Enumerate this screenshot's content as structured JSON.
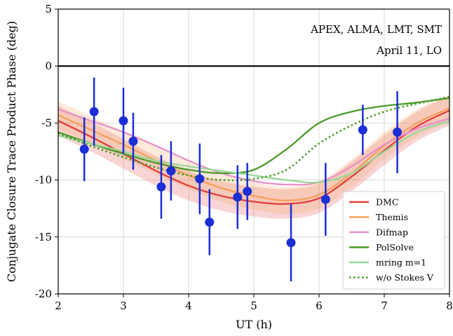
{
  "chart_data": {
    "type": "scatter",
    "xlabel": "UT (h)",
    "ylabel": "Conjugate Closure Trace Product Phase (deg)",
    "xlim": [
      2,
      8
    ],
    "ylim": [
      -20,
      5
    ],
    "xticks": [
      "2",
      "3",
      "4",
      "5",
      "6",
      "7",
      "8"
    ],
    "yticks": [
      "5",
      "0",
      "-5",
      "-10",
      "-15",
      "-20"
    ],
    "grid": true,
    "legend_position": "lower-right",
    "annotations": [
      "APEX, ALMA, LMT, SMT",
      "April 11, LO"
    ],
    "zero_line": 0,
    "points": [
      {
        "x": 2.4,
        "y": -7.3,
        "err": 2.8
      },
      {
        "x": 2.55,
        "y": -4.0,
        "err": 3.0
      },
      {
        "x": 3.0,
        "y": -4.8,
        "err": 2.9
      },
      {
        "x": 3.15,
        "y": -6.6,
        "err": 2.5
      },
      {
        "x": 3.58,
        "y": -10.6,
        "err": 2.8
      },
      {
        "x": 3.73,
        "y": -9.2,
        "err": 2.6
      },
      {
        "x": 4.17,
        "y": -9.9,
        "err": 3.1
      },
      {
        "x": 4.32,
        "y": -13.7,
        "err": 2.9
      },
      {
        "x": 4.75,
        "y": -11.5,
        "err": 2.8
      },
      {
        "x": 4.9,
        "y": -11.0,
        "err": 2.5
      },
      {
        "x": 5.57,
        "y": -15.5,
        "err": 3.4
      },
      {
        "x": 6.1,
        "y": -11.7,
        "err": 3.2
      },
      {
        "x": 6.67,
        "y": -5.6,
        "err": 2.2
      },
      {
        "x": 7.2,
        "y": -5.8,
        "err": 3.6
      }
    ],
    "point_color": "#1a2fd6",
    "series": [
      {
        "name": "DMC",
        "color": "#e0403a",
        "style": "solid",
        "x": [
          2,
          2.5,
          3,
          3.5,
          4,
          4.5,
          5,
          5.5,
          6,
          6.5,
          7,
          7.5,
          8
        ],
        "y": [
          -4.8,
          -6.2,
          -7.7,
          -9.2,
          -10.5,
          -11.4,
          -11.9,
          -12.1,
          -11.6,
          -9.7,
          -7.4,
          -5.3,
          -3.9
        ],
        "band": 1.3
      },
      {
        "name": "Themis",
        "color": "#f5a05a",
        "style": "solid",
        "x": [
          2,
          2.5,
          3,
          3.5,
          4,
          4.5,
          5,
          5.5,
          6,
          6.5,
          7,
          7.5,
          8
        ],
        "y": [
          -4.3,
          -5.6,
          -6.9,
          -8.3,
          -9.6,
          -10.7,
          -11.4,
          -11.8,
          -11.3,
          -9.4,
          -7.0,
          -5.0,
          -3.7
        ],
        "band": 1.2
      },
      {
        "name": "Difmap",
        "color": "#e890c8",
        "style": "solid",
        "x": [
          2,
          2.5,
          3,
          3.5,
          4,
          4.5,
          5,
          5.5,
          6,
          6.5,
          7,
          7.5,
          8
        ],
        "y": [
          -3.8,
          -4.8,
          -5.8,
          -7.0,
          -8.3,
          -9.4,
          -10.1,
          -10.4,
          -10.2,
          -8.8,
          -6.9,
          -5.5,
          -4.6
        ]
      },
      {
        "name": "PolSolve",
        "color": "#4a9a2a",
        "style": "solid",
        "x": [
          2,
          2.5,
          3,
          3.5,
          4,
          4.5,
          5,
          5.5,
          6,
          6.5,
          7,
          7.5,
          8
        ],
        "y": [
          -5.8,
          -6.8,
          -7.7,
          -8.5,
          -9.1,
          -9.4,
          -9.1,
          -7.3,
          -5.0,
          -4.0,
          -3.5,
          -3.2,
          -2.8
        ]
      },
      {
        "name": "mring m=1",
        "color": "#9ad89a",
        "style": "solid",
        "x": [
          2,
          2.5,
          3,
          3.5,
          4,
          4.5,
          5,
          5.5,
          6,
          6.5,
          7,
          7.5,
          8
        ],
        "y": [
          -6.1,
          -6.8,
          -7.5,
          -8.3,
          -8.8,
          -9.2,
          -9.6,
          -10.0,
          -10.2,
          -9.4,
          -7.5,
          -5.8,
          -4.8
        ]
      },
      {
        "name": "w/o Stokes V",
        "color": "#4a9a2a",
        "style": "dotted",
        "x": [
          2,
          2.5,
          3,
          3.5,
          4,
          4.5,
          5,
          5.5,
          6,
          6.5,
          7,
          7.5,
          8
        ],
        "y": [
          -5.9,
          -7.0,
          -8.0,
          -8.9,
          -9.6,
          -10.0,
          -9.9,
          -9.1,
          -6.8,
          -5.2,
          -4.0,
          -3.3,
          -2.7
        ]
      }
    ]
  }
}
